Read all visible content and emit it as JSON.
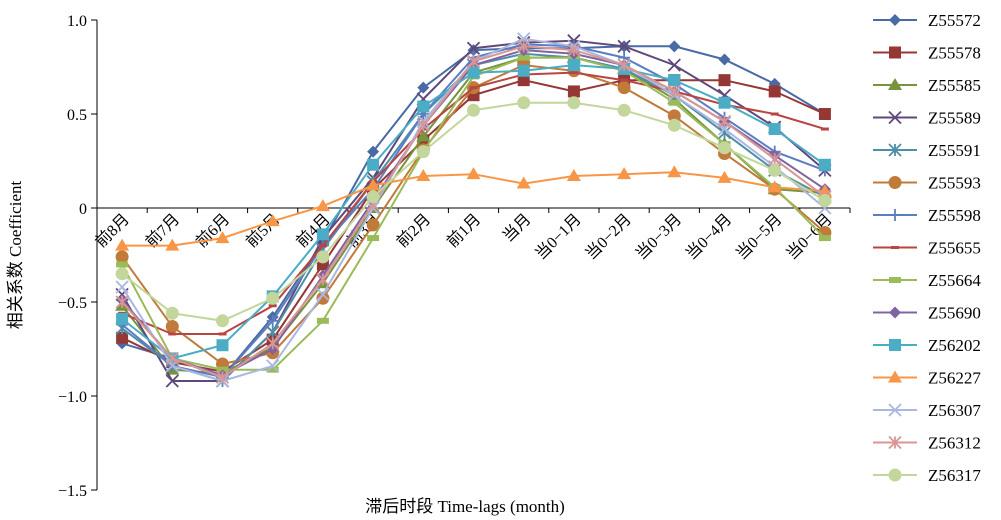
{
  "chart_data": {
    "type": "line",
    "xlabel": "滞后时段 Time-lags (month)",
    "ylabel": "相关系数 Coefficient",
    "ylim": [
      -1.5,
      1.0
    ],
    "yticks": [
      -1.5,
      -1.0,
      -0.5,
      0,
      0.5,
      1.0
    ],
    "ytick_labels": [
      "−1.5",
      "−1.0",
      "−0.5",
      "0",
      "0.5",
      "1.0"
    ],
    "grid": false,
    "legend_position": "right",
    "categories": [
      "前8月",
      "前7月",
      "前6月",
      "前5月",
      "前4月",
      "前3月",
      "前2月",
      "前1月",
      "当月",
      "当0−1月",
      "当0−2月",
      "当0−3月",
      "当0−4月",
      "当0−5月",
      "当0−6月"
    ],
    "series": [
      {
        "name": "Z55572",
        "color": "#4a6aa5",
        "marker": "diamond",
        "values": [
          -0.72,
          -0.8,
          -0.9,
          -0.58,
          -0.18,
          0.3,
          0.64,
          0.84,
          0.85,
          0.85,
          0.86,
          0.86,
          0.79,
          0.66,
          0.5
        ]
      },
      {
        "name": "Z55578",
        "color": "#953735",
        "marker": "square",
        "values": [
          -0.69,
          -0.82,
          -0.87,
          -0.7,
          -0.3,
          0.1,
          0.36,
          0.6,
          0.68,
          0.62,
          0.68,
          0.68,
          0.68,
          0.62,
          0.5
        ]
      },
      {
        "name": "Z55585",
        "color": "#77933c",
        "marker": "triangle",
        "values": [
          -0.52,
          -0.86,
          -0.88,
          -0.74,
          -0.4,
          0.0,
          0.38,
          0.72,
          0.8,
          0.8,
          0.74,
          0.58,
          0.34,
          0.1,
          0.08
        ]
      },
      {
        "name": "Z55589",
        "color": "#5f497a",
        "marker": "x",
        "values": [
          -0.46,
          -0.92,
          -0.92,
          -0.66,
          -0.16,
          0.16,
          0.58,
          0.85,
          0.88,
          0.89,
          0.86,
          0.76,
          0.6,
          0.43,
          0.2
        ]
      },
      {
        "name": "Z55591",
        "color": "#4e8ea8",
        "marker": "star",
        "values": [
          -0.64,
          -0.84,
          -0.92,
          -0.66,
          -0.22,
          0.14,
          0.5,
          0.76,
          0.82,
          0.8,
          0.74,
          0.6,
          0.4,
          0.2,
          0.06
        ]
      },
      {
        "name": "Z55593",
        "color": "#c07a3a",
        "marker": "circle",
        "values": [
          -0.26,
          -0.63,
          -0.83,
          -0.77,
          -0.48,
          -0.09,
          0.31,
          0.64,
          0.76,
          0.73,
          0.64,
          0.49,
          0.29,
          0.1,
          -0.13
        ]
      },
      {
        "name": "Z55598",
        "color": "#5b7dc2",
        "marker": "plus",
        "values": [
          -0.62,
          -0.84,
          -0.9,
          -0.6,
          -0.2,
          0.1,
          0.5,
          0.8,
          0.87,
          0.86,
          0.8,
          0.66,
          0.48,
          0.3,
          0.2
        ]
      },
      {
        "name": "Z55655",
        "color": "#b94542",
        "marker": "dash",
        "values": [
          -0.56,
          -0.67,
          -0.67,
          -0.52,
          -0.2,
          0.14,
          0.42,
          0.64,
          0.71,
          0.72,
          0.68,
          0.62,
          0.55,
          0.5,
          0.42
        ]
      },
      {
        "name": "Z55664",
        "color": "#9bbb59",
        "marker": "bar",
        "values": [
          -0.3,
          -0.8,
          -0.86,
          -0.86,
          -0.6,
          -0.16,
          0.3,
          0.7,
          0.8,
          0.8,
          0.73,
          0.56,
          0.34,
          0.11,
          -0.16
        ]
      },
      {
        "name": "Z55690",
        "color": "#8064a2",
        "marker": "diamond",
        "values": [
          -0.49,
          -0.8,
          -0.89,
          -0.75,
          -0.36,
          0.04,
          0.44,
          0.76,
          0.84,
          0.82,
          0.76,
          0.62,
          0.46,
          0.28,
          0.1
        ]
      },
      {
        "name": "Z56202",
        "color": "#4bacc6",
        "marker": "square",
        "values": [
          -0.59,
          -0.8,
          -0.73,
          -0.47,
          -0.14,
          0.23,
          0.54,
          0.72,
          0.73,
          0.76,
          0.74,
          0.68,
          0.56,
          0.42,
          0.23
        ]
      },
      {
        "name": "Z56227",
        "color": "#f79646",
        "marker": "triangle",
        "values": [
          -0.2,
          -0.2,
          -0.16,
          -0.07,
          0.01,
          0.12,
          0.17,
          0.18,
          0.13,
          0.17,
          0.18,
          0.19,
          0.16,
          0.11,
          0.09
        ]
      },
      {
        "name": "Z56307",
        "color": "#a8b8e0",
        "marker": "x",
        "values": [
          -0.42,
          -0.84,
          -0.92,
          -0.84,
          -0.46,
          0.0,
          0.46,
          0.78,
          0.9,
          0.86,
          0.76,
          0.6,
          0.42,
          0.22,
          0.0
        ]
      },
      {
        "name": "Z56312",
        "color": "#d99694",
        "marker": "star",
        "values": [
          -0.5,
          -0.8,
          -0.9,
          -0.72,
          -0.38,
          0.02,
          0.44,
          0.78,
          0.86,
          0.84,
          0.76,
          0.62,
          0.46,
          0.26,
          0.06
        ]
      },
      {
        "name": "Z56317",
        "color": "#c3d69b",
        "marker": "circle",
        "values": [
          -0.35,
          -0.56,
          -0.6,
          -0.48,
          -0.26,
          0.06,
          0.3,
          0.52,
          0.56,
          0.56,
          0.52,
          0.44,
          0.32,
          0.2,
          0.04
        ]
      }
    ]
  }
}
